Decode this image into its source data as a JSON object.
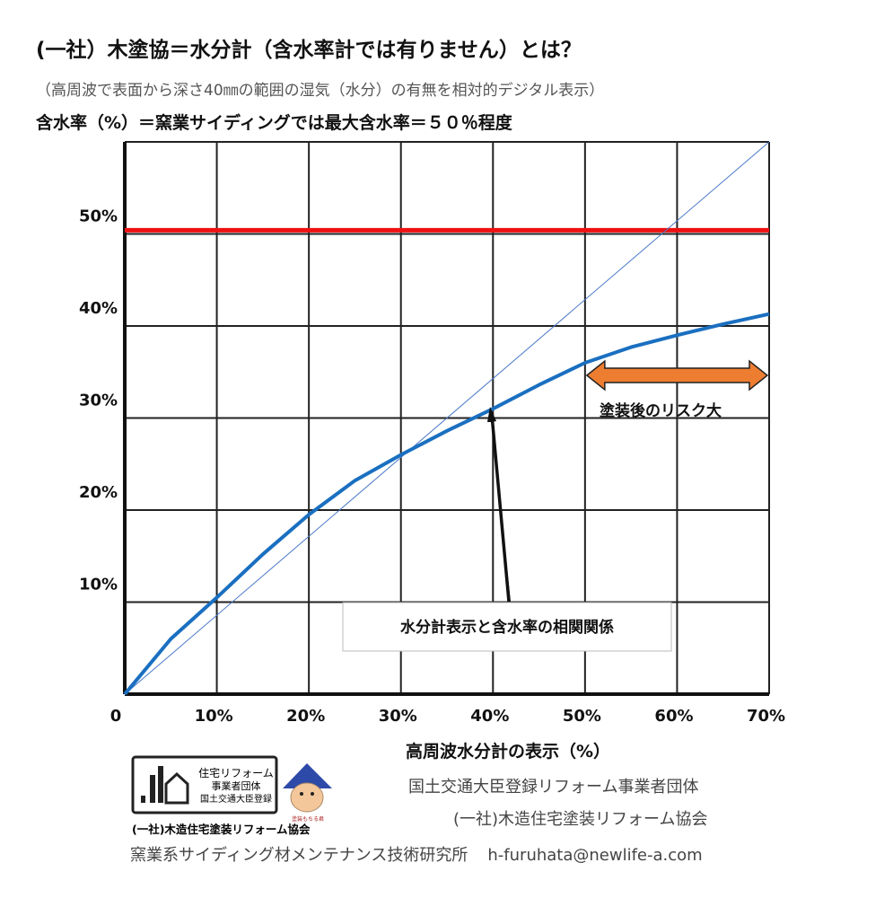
{
  "header": {
    "title": "(一社）木塗協＝水分計（含水率計では有りません）とは？",
    "subtitle": "（高周波で表面から深さ40㎜の範囲の湿気（水分）の有無を相対的デジタル表示）"
  },
  "chart_data": {
    "type": "line",
    "title": "(一社）木塗協＝水分計（含水率計では有りません）とは？",
    "ylabel": "含水率（%）＝窯業サイディングでは最大含水率＝５０％程度",
    "xlabel": "高周波水分計の表示（%）",
    "xlim": [
      0,
      70
    ],
    "ylim": [
      0,
      60
    ],
    "grid": true,
    "x_ticks": [
      0,
      10,
      20,
      30,
      40,
      50,
      60,
      70
    ],
    "x_tick_labels": [
      "0",
      "10%",
      "20%",
      "30%",
      "40%",
      "50%",
      "60%",
      "70%"
    ],
    "y_ticks": [
      10,
      20,
      30,
      40,
      50
    ],
    "y_tick_labels": [
      "10%",
      "20%",
      "30%",
      "40%",
      "50%"
    ],
    "series": [
      {
        "name": "水分計表示と含水率の相関関係",
        "color": "#1a6fc0",
        "x": [
          0,
          5,
          10,
          15,
          20,
          25,
          30,
          35,
          40,
          45,
          50,
          55,
          60,
          65,
          70
        ],
        "y": [
          0,
          6,
          10.5,
          15.2,
          19.5,
          23.2,
          26,
          28.6,
          31,
          33.6,
          36,
          37.7,
          39,
          40.2,
          41.3
        ]
      },
      {
        "name": "diagonal",
        "color": "#4a78c8",
        "x": [
          0,
          70
        ],
        "y": [
          0,
          60
        ]
      }
    ],
    "reference_line": {
      "y": 50.4,
      "color": "#ee1111"
    },
    "annotations": {
      "callout": "水分計表示と含水率の相関関係",
      "risk_label": "塗装後のリスク大",
      "risk_range": [
        50,
        70
      ],
      "risk_color": "#ed7d31"
    }
  },
  "footer": {
    "org_line1": "国土交通大臣登録リフォーム事業者団体",
    "org_line2": "(一社)木造住宅塗装リフォーム協会",
    "lab": "窯業系サイディング材メンテナンス技術研究所",
    "email": "h-furuhata@newlife-a.com"
  },
  "logo": {
    "line1": "住宅リフォーム",
    "line2": "事業者団体",
    "line3": "国土交通大臣登録",
    "org": "(一社)木造住宅塗装リフォーム協会",
    "mascot": "塗装もちる君"
  }
}
